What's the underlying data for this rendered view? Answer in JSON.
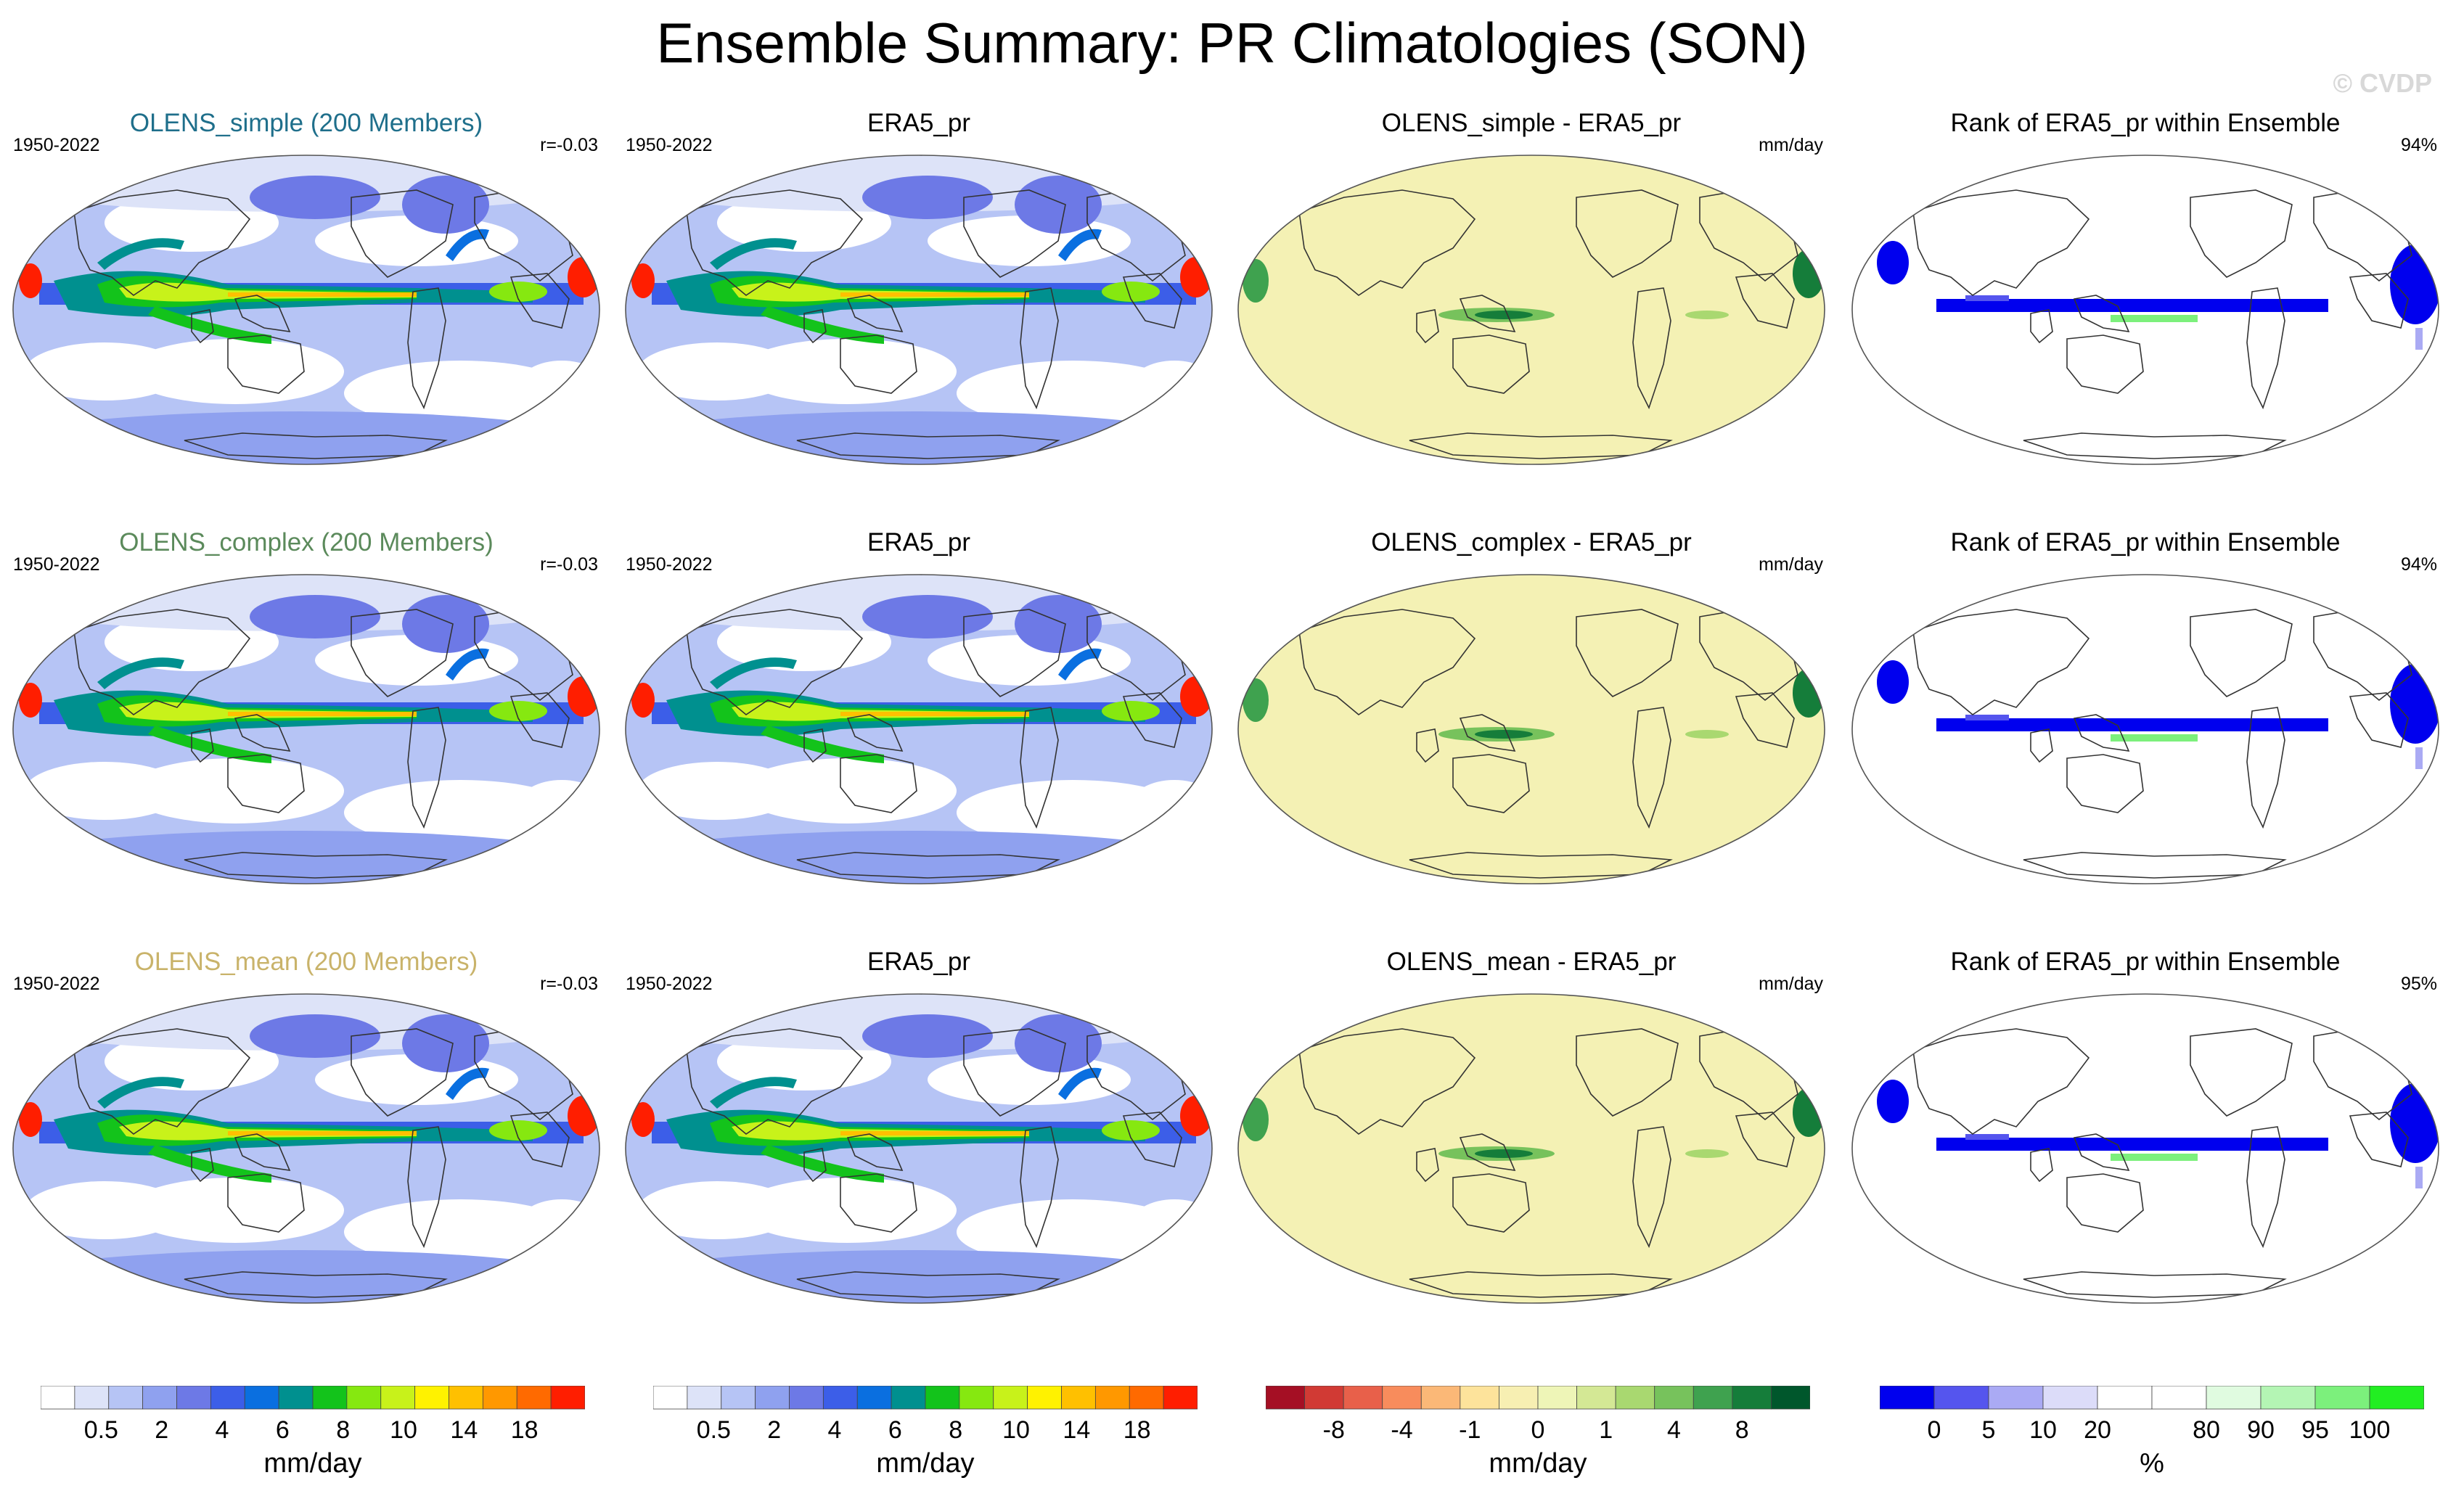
{
  "title": "Ensemble Summary: PR Climatologies (SON)",
  "watermark": "© CVDP",
  "colors": {
    "title_simple": "#1f6f8b",
    "title_complex": "#5b8a5b",
    "title_mean": "#c9b36a",
    "ocean_mid": "#a5b8f2",
    "ocean_dry": "#ffffff",
    "diff_bg": "#f7efb2",
    "rank_bg": "#ffffff"
  },
  "rows": [
    {
      "model_title": "OLENS_simple (200 Members)",
      "title_color": "#1f6f8b",
      "period": "1950-2022",
      "corr": "r=-0.03",
      "obs_title": "ERA5_pr",
      "obs_period": "1950-2022",
      "diff_title": "OLENS_simple - ERA5_pr",
      "diff_units": "mm/day",
      "rank_title": "Rank of ERA5_pr within Ensemble",
      "rank_pct": "94%"
    },
    {
      "model_title": "OLENS_complex (200 Members)",
      "title_color": "#5b8a5b",
      "period": "1950-2022",
      "corr": "r=-0.03",
      "obs_title": "ERA5_pr",
      "obs_period": "1950-2022",
      "diff_title": "OLENS_complex - ERA5_pr",
      "diff_units": "mm/day",
      "rank_title": "Rank of ERA5_pr within Ensemble",
      "rank_pct": "94%"
    },
    {
      "model_title": "OLENS_mean (200 Members)",
      "title_color": "#c9b36a",
      "period": "1950-2022",
      "corr": "r=-0.03",
      "obs_title": "ERA5_pr",
      "obs_period": "1950-2022",
      "diff_title": "OLENS_mean - ERA5_pr",
      "diff_units": "mm/day",
      "rank_title": "Rank of ERA5_pr within Ensemble",
      "rank_pct": "95%"
    }
  ],
  "chart_data": [
    {
      "type": "colorbar",
      "name": "precipitation climatology",
      "units": "mm/day",
      "boxes": [
        "#ffffff",
        "#dde3f8",
        "#b6c4f5",
        "#8fa1ef",
        "#6d79e6",
        "#3c5ee8",
        "#0a6fe0",
        "#00908f",
        "#13c31b",
        "#86e810",
        "#c8f21a",
        "#fff200",
        "#ffc000",
        "#ff9800",
        "#ff6a00",
        "#ff1e00"
      ],
      "tick_labels": [
        "0.5",
        "2",
        "4",
        "6",
        "8",
        "10",
        "14",
        "18"
      ]
    },
    {
      "type": "colorbar",
      "name": "precipitation climatology",
      "units": "mm/day",
      "boxes": [
        "#ffffff",
        "#dde3f8",
        "#b6c4f5",
        "#8fa1ef",
        "#6d79e6",
        "#3c5ee8",
        "#0a6fe0",
        "#00908f",
        "#13c31b",
        "#86e810",
        "#c8f21a",
        "#fff200",
        "#ffc000",
        "#ff9800",
        "#ff6a00",
        "#ff1e00"
      ],
      "tick_labels": [
        "0.5",
        "2",
        "4",
        "6",
        "8",
        "10",
        "14",
        "18"
      ]
    },
    {
      "type": "colorbar",
      "name": "difference",
      "units": "mm/day",
      "boxes": [
        "#a50f24",
        "#d13a34",
        "#e8604a",
        "#f88c5c",
        "#fbb877",
        "#fde39b",
        "#f7efb2",
        "#eef5b7",
        "#d4e895",
        "#a9d870",
        "#77c25c",
        "#3fa24f",
        "#157d3a",
        "#00572c"
      ],
      "tick_labels": [
        "-8",
        "-4",
        "-1",
        "0",
        "1",
        "4",
        "8"
      ]
    },
    {
      "type": "colorbar",
      "name": "rank",
      "units": "%",
      "boxes": [
        "#0000ee",
        "#5555ee",
        "#aaaaf4",
        "#dcdcf9",
        "#ffffff",
        "#ffffff",
        "#e0fbe0",
        "#b4f5b4",
        "#7cf07c",
        "#22ee22"
      ],
      "tick_labels": [
        "0",
        "5",
        "10",
        "20",
        "80",
        "90",
        "95",
        "100"
      ]
    }
  ]
}
